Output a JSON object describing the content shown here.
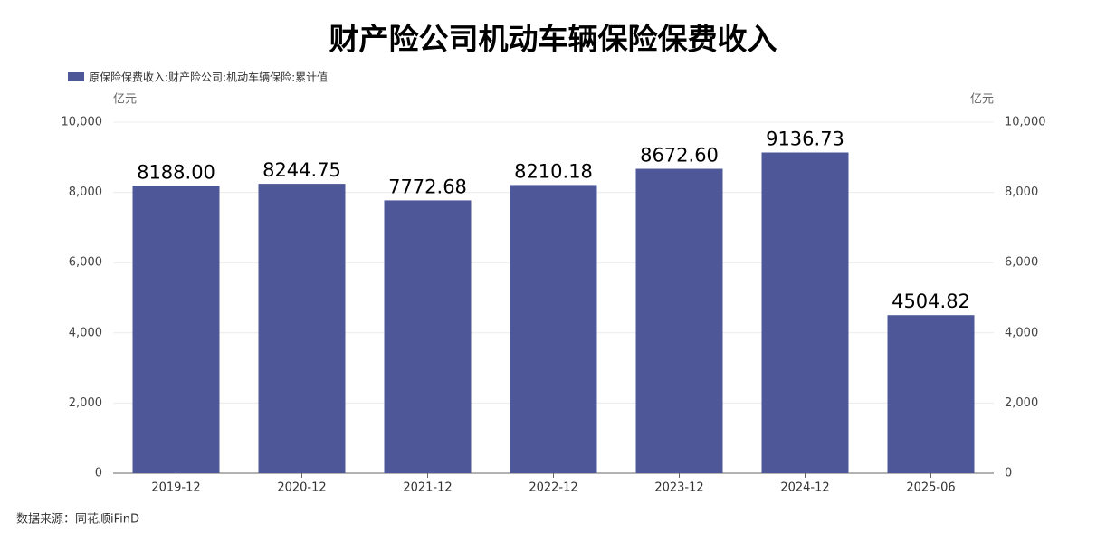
{
  "chart_data": {
    "type": "bar",
    "title": "财产险公司机动车辆保险保费收入",
    "y_unit": "亿元",
    "y2_unit": "亿元",
    "categories": [
      "2019-12",
      "2020-12",
      "2021-12",
      "2022-12",
      "2023-12",
      "2024-12",
      "2025-06"
    ],
    "series": [
      {
        "name": "原保险保费收入:财产险公司:机动车辆保险:累计值",
        "color": "#4e5898",
        "values": [
          8188,
          8244.75,
          7772.68,
          8210.18,
          8672.6,
          9136.73,
          4504.82
        ],
        "value_labels": [
          "8188.00",
          "8244.75",
          "7772.68",
          "8210.18",
          "8672.60",
          "9136.73",
          "4504.82"
        ]
      }
    ],
    "ylim": [
      0,
      10000
    ],
    "yticks": [
      0,
      {
        "value": 2000,
        "label": "2,000"
      },
      {
        "value": 4000,
        "label": "4,000"
      },
      {
        "value": 6000,
        "label": "6,000"
      },
      {
        "value": 8000,
        "label": "8,000"
      },
      {
        "value": 10000,
        "label": "10,000"
      }
    ],
    "y2lim": [
      0,
      10000
    ],
    "y2ticks": [
      0,
      {
        "value": 2000,
        "label": "2,000"
      },
      {
        "value": 4000,
        "label": "4,000"
      },
      {
        "value": 6000,
        "label": "6,000"
      },
      {
        "value": 8000,
        "label": "8,000"
      },
      {
        "value": 10000,
        "label": "10,000"
      }
    ],
    "grid": true,
    "source": "数据来源：同花顺iFinD"
  }
}
